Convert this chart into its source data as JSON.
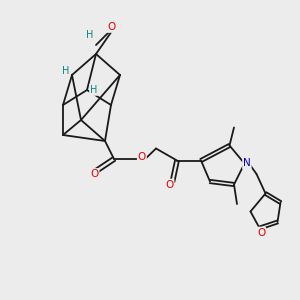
{
  "background_color": "#ececec",
  "bond_color": "#1a1a1a",
  "bond_width": 1.3,
  "atom_colors": {
    "O": "#ee0000",
    "N": "#0000cc",
    "H": "#008888",
    "C": "#1a1a1a"
  },
  "font_size_atom": 7.5,
  "fig_size": [
    3.0,
    3.0
  ],
  "dpi": 100
}
